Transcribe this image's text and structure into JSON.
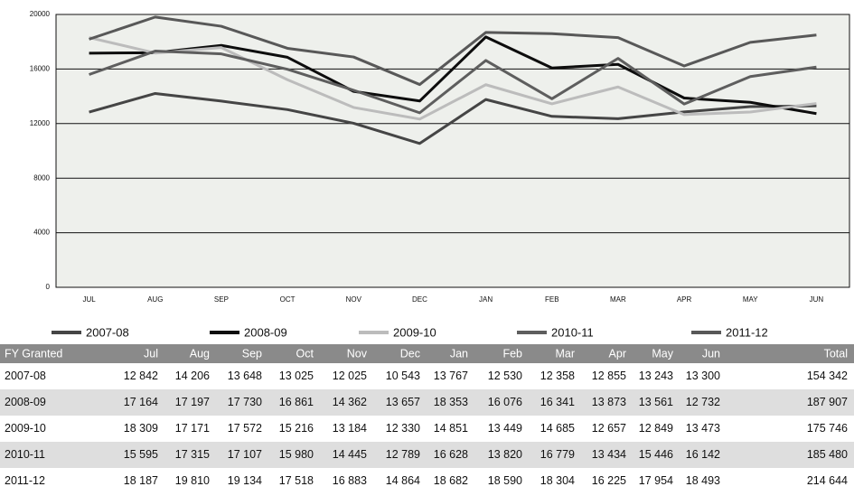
{
  "chart_data": {
    "type": "line",
    "categories": [
      "JUL",
      "AUG",
      "SEP",
      "OCT",
      "NOV",
      "DEC",
      "JAN",
      "FEB",
      "MAR",
      "APR",
      "MAY",
      "JUN"
    ],
    "ylim": [
      0,
      20000
    ],
    "yticks": [
      0,
      4000,
      8000,
      12000,
      16000,
      20000
    ],
    "grid": true,
    "series": [
      {
        "name": "2007-08",
        "color": "#454545",
        "values": [
          12842,
          14206,
          13648,
          13025,
          12025,
          10543,
          13767,
          12530,
          12358,
          12855,
          13243,
          13300
        ],
        "value_labels": [
          "12 842",
          "14 206",
          "13 648",
          "13 025",
          "12 025",
          "10 543",
          "13 767",
          "12 530",
          "12 358",
          "12 855",
          "13 243",
          "13 300"
        ]
      },
      {
        "name": "2008-09",
        "color": "#0d0d0d",
        "values": [
          17164,
          17197,
          17730,
          16861,
          14362,
          13657,
          18353,
          16076,
          16341,
          13873,
          13561,
          12732
        ],
        "value_labels": [
          "17 164",
          "17 197",
          "17 730",
          "16 861",
          "14 362",
          "13 657",
          "18 353",
          "16 076",
          "16 341",
          "13 873",
          "13 561",
          "12 732"
        ]
      },
      {
        "name": "2009-10",
        "color": "#bcbcbc",
        "values": [
          18309,
          17171,
          17572,
          15216,
          13184,
          12330,
          14851,
          13449,
          14685,
          12657,
          12849,
          13473
        ],
        "value_labels": [
          "18 309",
          "17 171",
          "17 572",
          "15 216",
          "13 184",
          "12 330",
          "14 851",
          "13 449",
          "14 685",
          "12 657",
          "12 849",
          "13 473"
        ]
      },
      {
        "name": "2010-11",
        "color": "#5e5e5e",
        "values": [
          15595,
          17315,
          17107,
          15980,
          14445,
          12789,
          16628,
          13820,
          16779,
          13434,
          15446,
          16142
        ],
        "value_labels": [
          "15 595",
          "17 315",
          "17 107",
          "15 980",
          "14 445",
          "12 789",
          "16 628",
          "13 820",
          "16 779",
          "13 434",
          "15 446",
          "16 142"
        ]
      },
      {
        "name": "2011-12",
        "color": "#585858",
        "values": [
          18187,
          19810,
          19134,
          17518,
          16883,
          14864,
          18682,
          18590,
          18304,
          16225,
          17954,
          18493
        ],
        "value_labels": [
          "18 187",
          "19 810",
          "19 134",
          "17 518",
          "16 883",
          "14 864",
          "18 682",
          "18 590",
          "18 304",
          "16 225",
          "17 954",
          "18 493"
        ]
      }
    ]
  },
  "table": {
    "header": [
      "FY Granted",
      "Jul",
      "Aug",
      "Sep",
      "Oct",
      "Nov",
      "Dec",
      "Jan",
      "Feb",
      "Mar",
      "Apr",
      "May",
      "Jun",
      "Total"
    ],
    "totals": [
      "154 342",
      "187 907",
      "175 746",
      "185 480",
      "214 644"
    ]
  }
}
